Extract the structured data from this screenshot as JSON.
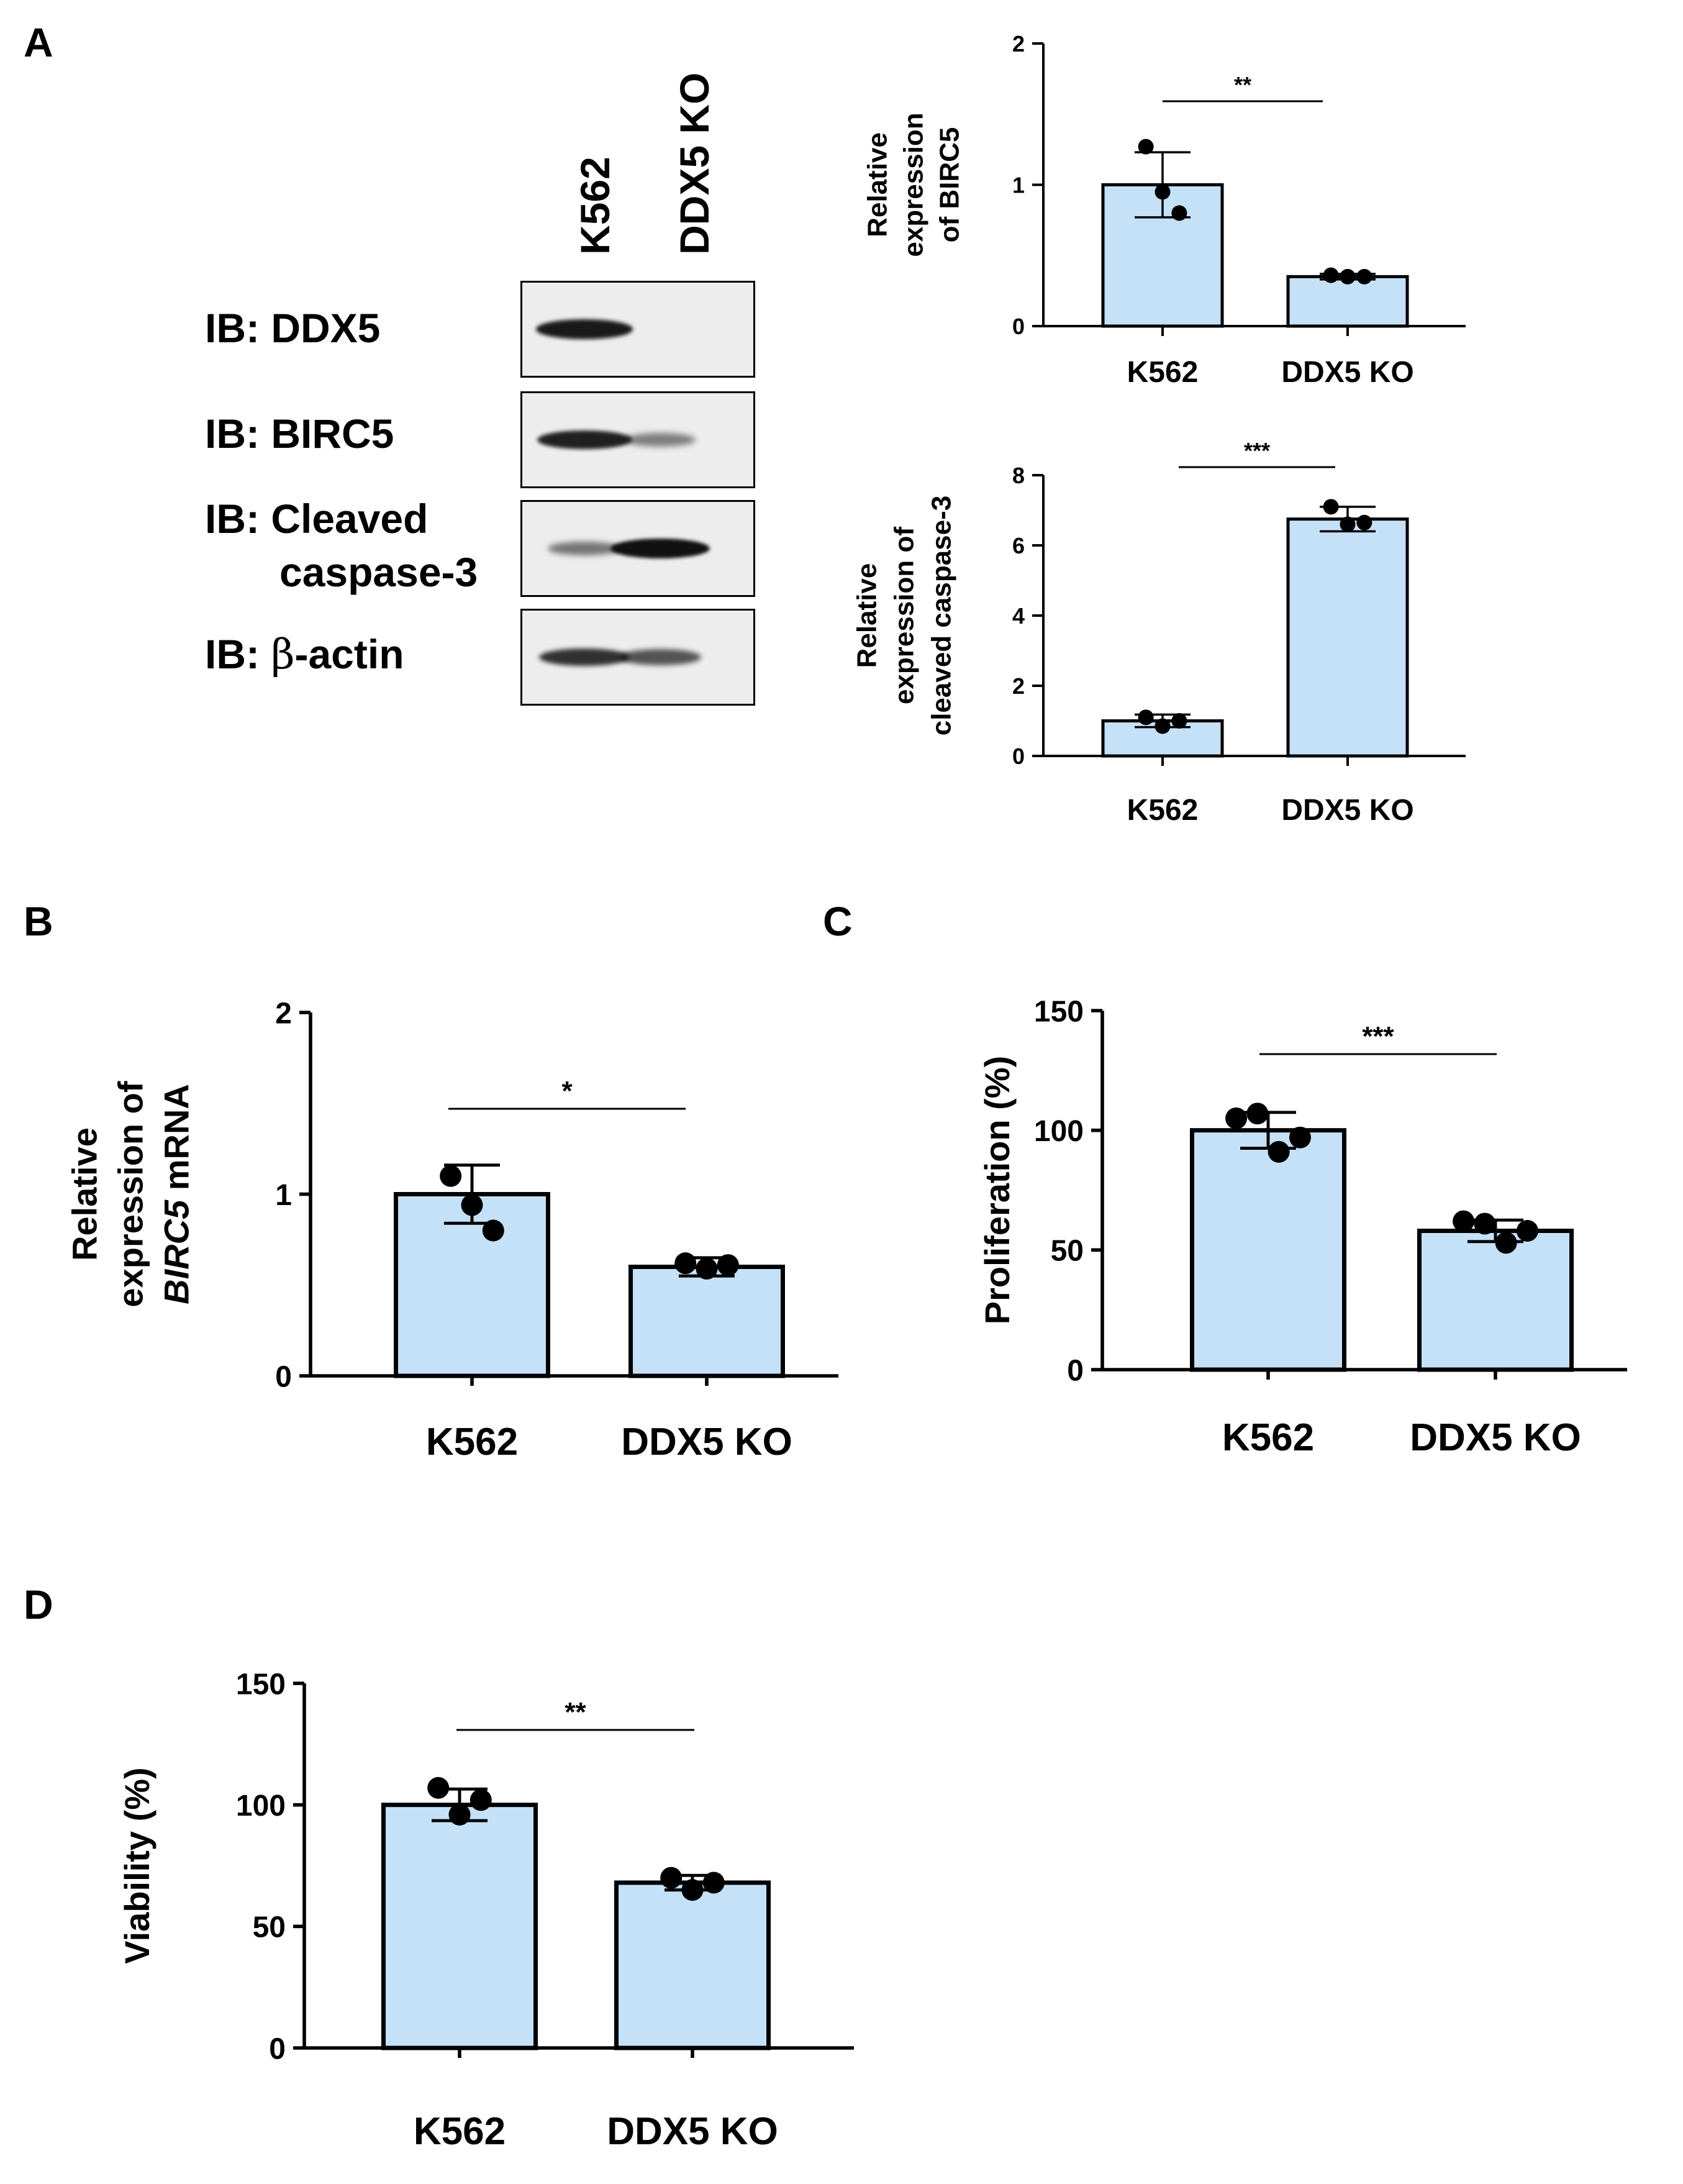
{
  "panels": {
    "a": "A",
    "b": "B",
    "c": "C",
    "d": "D"
  },
  "blot": {
    "lanes": [
      "K562",
      "DDX5 KO"
    ],
    "rows": [
      {
        "label": "IB: DDX5",
        "intensity": [
          0.95,
          0.0
        ]
      },
      {
        "label": "IB: BIRC5",
        "intensity": [
          0.9,
          0.35
        ]
      },
      {
        "label_lines": [
          "IB: Cleaved",
          "caspase-3"
        ],
        "intensity": [
          0.4,
          1.0
        ]
      },
      {
        "label_prefix": "IB: ",
        "label_greek": "β",
        "label_suffix": "-actin",
        "intensity": [
          0.8,
          0.6
        ]
      }
    ],
    "band_color": "#111111",
    "background_color": "#ededed"
  },
  "chart_data": [
    {
      "id": "A1",
      "type": "bar",
      "ylabel_lines": [
        "Relative",
        "expression",
        "of BIRC5"
      ],
      "categories": [
        "K562",
        "DDX5 KO"
      ],
      "values": [
        1.0,
        0.35
      ],
      "errors": [
        0.23,
        0.02
      ],
      "points": [
        [
          1.27,
          0.95,
          0.8
        ],
        [
          0.36,
          0.35,
          0.35
        ]
      ],
      "ylim": [
        0,
        2
      ],
      "yticks": [
        "0",
        "1",
        "2"
      ],
      "significance": "**",
      "bar_color": "#c5e1f8"
    },
    {
      "id": "A2",
      "type": "bar",
      "ylabel_lines": [
        "Relative",
        "expression of",
        "cleaved caspase-3"
      ],
      "categories": [
        "K562",
        "DDX5 KO"
      ],
      "values": [
        1.0,
        6.75
      ],
      "errors": [
        0.18,
        0.35
      ],
      "points": [
        [
          1.1,
          0.85,
          1.0
        ],
        [
          7.1,
          6.6,
          6.65
        ]
      ],
      "ylim": [
        0,
        8
      ],
      "yticks": [
        "0",
        "2",
        "4",
        "6",
        "8"
      ],
      "significance": "***",
      "bar_color": "#c5e1f8"
    },
    {
      "id": "B",
      "type": "bar",
      "ylabel_lines": [
        "Relative",
        "expression of"
      ],
      "ylabel_italic": "BIRC5",
      "ylabel_rest": " mRNA",
      "categories": [
        "K562",
        "DDX5 KO"
      ],
      "values": [
        1.0,
        0.6
      ],
      "errors": [
        0.16,
        0.05
      ],
      "points": [
        [
          1.1,
          0.94,
          0.8
        ],
        [
          0.62,
          0.59,
          0.61
        ]
      ],
      "ylim": [
        0,
        2
      ],
      "yticks": [
        "0",
        "1",
        "2"
      ],
      "significance": "*",
      "bar_color": "#c5e1f8"
    },
    {
      "id": "C",
      "type": "bar",
      "ylabel": "Proliferation (%)",
      "categories": [
        "K562",
        "DDX5 KO"
      ],
      "values": [
        100,
        58
      ],
      "errors": [
        7.5,
        4.5
      ],
      "points": [
        [
          105,
          107,
          91,
          97
        ],
        [
          62,
          61,
          53,
          58
        ]
      ],
      "ylim": [
        0,
        150
      ],
      "yticks": [
        "0",
        "50",
        "100",
        "150"
      ],
      "significance": "***",
      "bar_color": "#c5e1f8"
    },
    {
      "id": "D",
      "type": "bar",
      "ylabel": "Viability (%)",
      "categories": [
        "K562",
        "DDX5 KO"
      ],
      "values": [
        100,
        68
      ],
      "errors": [
        6.5,
        3.0
      ],
      "points": [
        [
          107,
          96,
          102
        ],
        [
          70,
          65,
          68
        ]
      ],
      "ylim": [
        0,
        150
      ],
      "yticks": [
        "0",
        "50",
        "100",
        "150"
      ],
      "significance": "**",
      "bar_color": "#c5e1f8"
    }
  ]
}
